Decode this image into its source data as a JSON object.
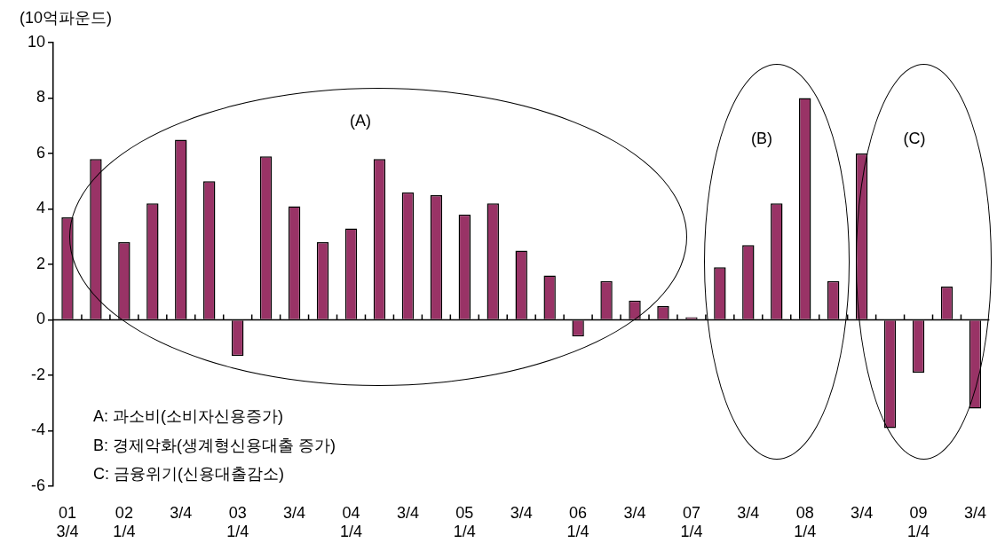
{
  "chart_data": {
    "type": "bar",
    "ylabel": "(10억파운드)",
    "categories": [
      "01\n3/4",
      null,
      "02\n1/4",
      null,
      "3/4",
      null,
      "03\n1/4",
      null,
      "3/4",
      null,
      "04\n1/4",
      null,
      "3/4",
      null,
      "05\n1/4",
      null,
      "3/4",
      null,
      "06\n1/4",
      null,
      "3/4",
      null,
      "07\n1/4",
      null,
      "3/4",
      null,
      "08\n1/4",
      null,
      "3/4",
      null,
      "09\n1/4",
      null,
      "3/4"
    ],
    "values": [
      3.7,
      5.8,
      2.8,
      4.2,
      6.5,
      5.0,
      -1.3,
      5.9,
      4.1,
      2.8,
      3.3,
      5.8,
      4.6,
      4.5,
      3.8,
      4.2,
      2.5,
      1.6,
      -0.6,
      1.4,
      0.7,
      0.5,
      0.1,
      1.9,
      2.7,
      4.2,
      8.0,
      1.4,
      6.0,
      -3.9,
      -1.9,
      1.2,
      -3.2
    ],
    "color": "#993366",
    "ylim": [
      -6,
      10
    ],
    "yticks": [
      -6,
      -4,
      -2,
      0,
      2,
      4,
      6,
      8,
      10
    ],
    "ref_lines": [
      {
        "axis": "y",
        "value": 0,
        "color": "#000000"
      }
    ],
    "legend": false,
    "annotations": [
      "(A)",
      "(B)",
      "(C)",
      "A: 과소비(소비자신용증가)",
      "B: 경제악화(생계형신용대출 증가)",
      "C: 금융위기(신용대출감소)"
    ]
  }
}
